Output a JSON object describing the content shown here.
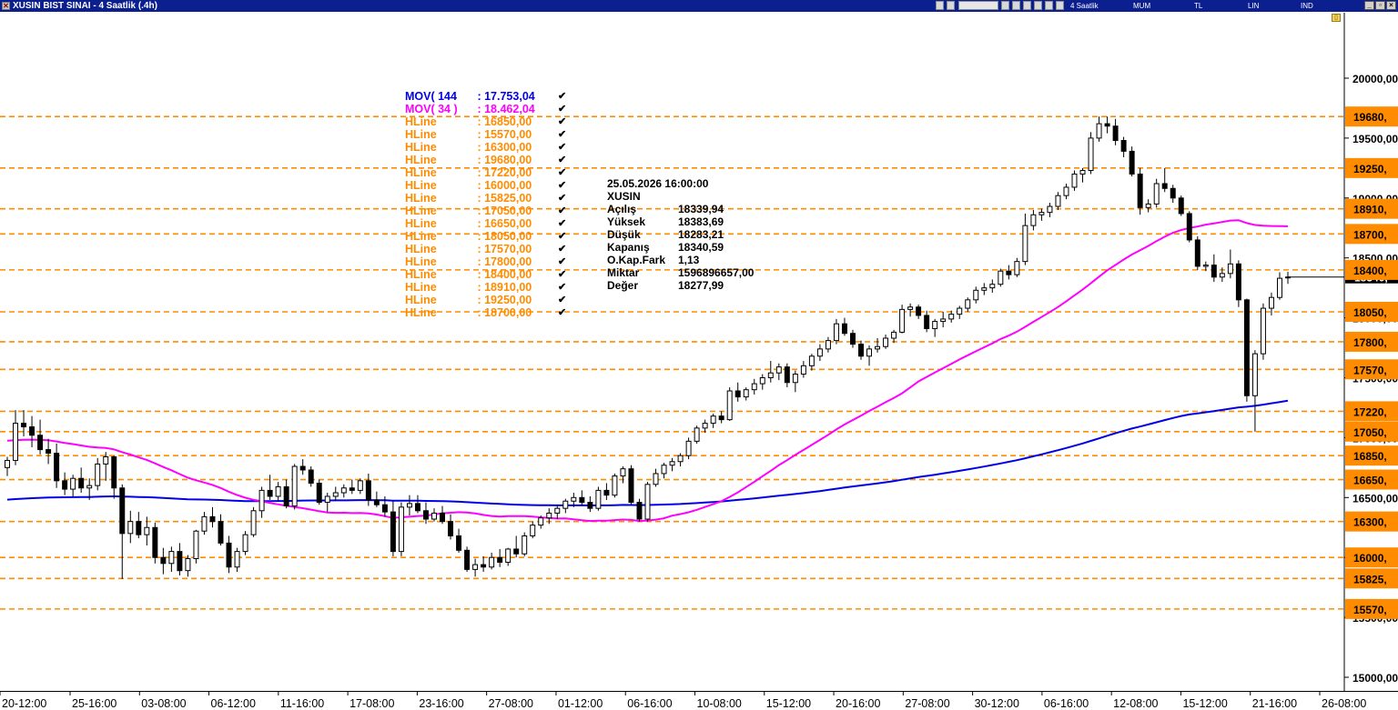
{
  "window": {
    "title": "XUSIN BIST SINAI - 4 Saatlik (.4h)",
    "toolbar": {
      "period": "4 Saatlik",
      "chart_style": "MUM",
      "currency": "TL",
      "scale": "LIN",
      "indicator": "IND"
    },
    "icons": [
      "window-icon",
      "chart-tool-icon",
      "line-tool-icon",
      "template-icon",
      "zoom-icon",
      "pin-icon",
      "arrow-icon",
      "minimize-icon",
      "restore-icon",
      "close-icon",
      "lock-icon"
    ]
  },
  "legend": [
    {
      "name": "MOV( 144",
      "value": " : 17.753,04",
      "color": "#0000e6"
    },
    {
      "name": "MOV( 34 )",
      "value": " : 18.462,04",
      "color": "#ff00ff"
    },
    {
      "name": "HLine",
      "value": " : 16850,00",
      "color": "#ff8c00"
    },
    {
      "name": "HLine",
      "value": " : 15570,00",
      "color": "#ff8c00"
    },
    {
      "name": "HLine",
      "value": " : 16300,00",
      "color": "#ff8c00"
    },
    {
      "name": "HLine",
      "value": " : 19680,00",
      "color": "#ff8c00"
    },
    {
      "name": "HLine",
      "value": " : 17220,00",
      "color": "#ff8c00"
    },
    {
      "name": "HLine",
      "value": " : 16000,00",
      "color": "#ff8c00"
    },
    {
      "name": "HLine",
      "value": " : 15825,00",
      "color": "#ff8c00"
    },
    {
      "name": "HLine",
      "value": " : 17050,00",
      "color": "#ff8c00"
    },
    {
      "name": "HLine",
      "value": " : 16650,00",
      "color": "#ff8c00"
    },
    {
      "name": "HLine",
      "value": " : 18050,00",
      "color": "#ff8c00"
    },
    {
      "name": "HLine",
      "value": " : 17570,00",
      "color": "#ff8c00"
    },
    {
      "name": "HLine",
      "value": " : 17800,00",
      "color": "#ff8c00"
    },
    {
      "name": "HLine",
      "value": " : 18400,00",
      "color": "#ff8c00"
    },
    {
      "name": "HLine",
      "value": " : 18910,00",
      "color": "#ff8c00"
    },
    {
      "name": "HLine",
      "value": " : 19250,00",
      "color": "#ff8c00"
    },
    {
      "name": "HLine",
      "value": " : 18700,00",
      "color": "#ff8c00"
    }
  ],
  "legend_check": "✔",
  "info_box": {
    "datetime": "25.05.2026  16:00:00",
    "symbol": "XUSIN",
    "rows": [
      {
        "label": "Açılış",
        "value": "18339,94"
      },
      {
        "label": "Yüksek",
        "value": "18383,69"
      },
      {
        "label": "Düşük",
        "value": "18283,21"
      },
      {
        "label": "Kapanış",
        "value": "18340,59"
      },
      {
        "label": "O.Kap.Fark",
        "value": "1,13"
      },
      {
        "label": "Miktar",
        "value": "1596896657,00"
      },
      {
        "label": "Değer",
        "value": "18277,99"
      }
    ]
  },
  "chart_data": {
    "type": "candlestick",
    "y_axis": {
      "range": [
        14950,
        20100
      ],
      "ticks": [
        15000,
        15500,
        16000,
        16500,
        17000,
        17500,
        18000,
        18500,
        19000,
        19500,
        20000
      ],
      "tick_labels": [
        "15000,00",
        "15500,00",
        "16000,00",
        "16500,00",
        "17000,00",
        "17500,00",
        "18000,00",
        "18500,00",
        "19000,00",
        "19500,00",
        "20000,00"
      ],
      "position": "right"
    },
    "x_axis": {
      "tick_labels": [
        "20-12:00",
        "25-16:00",
        "03-08:00",
        "06-12:00",
        "11-16:00",
        "17-08:00",
        "23-16:00",
        "27-08:00",
        "01-12:00",
        "06-16:00",
        "10-08:00",
        "15-12:00",
        "20-16:00",
        "27-08:00",
        "30-12:00",
        "06-16:00",
        "12-08:00",
        "15-12:00",
        "21-16:00",
        "26-08:00"
      ]
    },
    "hlines": {
      "values": [
        19680,
        19250,
        18910,
        18700,
        18400,
        18050,
        17800,
        17570,
        17220,
        17050,
        16850,
        16650,
        16300,
        16000,
        15825,
        15570
      ],
      "labels": [
        "19680,",
        "19250,",
        "18910,",
        "18700,",
        "18400,",
        "18050,",
        "17800,",
        "17570,",
        "17220,",
        "17050,",
        "16850,",
        "16650,",
        "16300,",
        "16000,",
        "15825,",
        "15570,"
      ],
      "color": "#ff8c00",
      "style": "dashed"
    },
    "last_price": 18340.59,
    "last_price_label": "18340,",
    "ohlc": [
      [
        16750,
        16840,
        16680,
        16810
      ],
      [
        16810,
        17230,
        16770,
        17120
      ],
      [
        17120,
        17230,
        17010,
        17090
      ],
      [
        17090,
        17180,
        16920,
        17020
      ],
      [
        17020,
        17150,
        16860,
        16900
      ],
      [
        16900,
        16990,
        16780,
        16870
      ],
      [
        16870,
        16950,
        16580,
        16640
      ],
      [
        16640,
        16710,
        16520,
        16570
      ],
      [
        16570,
        16690,
        16510,
        16660
      ],
      [
        16660,
        16750,
        16540,
        16580
      ],
      [
        16580,
        16660,
        16480,
        16600
      ],
      [
        16600,
        16830,
        16560,
        16780
      ],
      [
        16780,
        16880,
        16640,
        16840
      ],
      [
        16840,
        16850,
        16490,
        16580
      ],
      [
        16580,
        16610,
        15820,
        16200
      ],
      [
        16200,
        16390,
        16120,
        16300
      ],
      [
        16300,
        16380,
        16160,
        16190
      ],
      [
        16190,
        16340,
        16100,
        16250
      ],
      [
        16250,
        16290,
        15950,
        16000
      ],
      [
        16000,
        16080,
        15860,
        15950
      ],
      [
        15950,
        16090,
        15880,
        16050
      ],
      [
        16050,
        16120,
        15850,
        15890
      ],
      [
        15890,
        16020,
        15840,
        15990
      ],
      [
        15990,
        16230,
        15950,
        16220
      ],
      [
        16220,
        16380,
        16190,
        16340
      ],
      [
        16340,
        16420,
        16250,
        16300
      ],
      [
        16300,
        16360,
        16100,
        16120
      ],
      [
        16120,
        16180,
        15870,
        15920
      ],
      [
        15920,
        16080,
        15880,
        16050
      ],
      [
        16050,
        16220,
        16020,
        16190
      ],
      [
        16190,
        16420,
        16170,
        16390
      ],
      [
        16390,
        16590,
        16330,
        16560
      ],
      [
        16560,
        16690,
        16480,
        16510
      ],
      [
        16510,
        16630,
        16470,
        16590
      ],
      [
        16590,
        16650,
        16410,
        16430
      ],
      [
        16430,
        16780,
        16400,
        16760
      ],
      [
        16760,
        16820,
        16690,
        16730
      ],
      [
        16730,
        16760,
        16590,
        16620
      ],
      [
        16620,
        16650,
        16440,
        16460
      ],
      [
        16460,
        16540,
        16380,
        16510
      ],
      [
        16510,
        16590,
        16470,
        16540
      ],
      [
        16540,
        16610,
        16500,
        16580
      ],
      [
        16580,
        16650,
        16530,
        16560
      ],
      [
        16560,
        16660,
        16530,
        16640
      ],
      [
        16640,
        16700,
        16430,
        16480
      ],
      [
        16480,
        16550,
        16420,
        16440
      ],
      [
        16440,
        16510,
        16340,
        16380
      ],
      [
        16380,
        16470,
        16010,
        16050
      ],
      [
        16050,
        16460,
        16010,
        16420
      ],
      [
        16420,
        16520,
        16350,
        16450
      ],
      [
        16450,
        16520,
        16370,
        16390
      ],
      [
        16390,
        16460,
        16280,
        16320
      ],
      [
        16320,
        16410,
        16300,
        16370
      ],
      [
        16370,
        16430,
        16280,
        16300
      ],
      [
        16300,
        16360,
        16150,
        16180
      ],
      [
        16180,
        16240,
        16040,
        16060
      ],
      [
        16060,
        16090,
        15880,
        15900
      ],
      [
        15900,
        15990,
        15840,
        15940
      ],
      [
        15940,
        16010,
        15880,
        15920
      ],
      [
        15920,
        16040,
        15900,
        16000
      ],
      [
        16000,
        16070,
        15920,
        15960
      ],
      [
        15960,
        16080,
        15930,
        16070
      ],
      [
        16070,
        16180,
        16000,
        16030
      ],
      [
        16030,
        16210,
        16010,
        16180
      ],
      [
        16180,
        16300,
        16160,
        16270
      ],
      [
        16270,
        16350,
        16240,
        16330
      ],
      [
        16330,
        16410,
        16280,
        16370
      ],
      [
        16370,
        16440,
        16320,
        16410
      ],
      [
        16410,
        16490,
        16370,
        16470
      ],
      [
        16470,
        16540,
        16420,
        16500
      ],
      [
        16500,
        16560,
        16440,
        16460
      ],
      [
        16460,
        16510,
        16380,
        16410
      ],
      [
        16410,
        16590,
        16390,
        16560
      ],
      [
        16560,
        16620,
        16480,
        16520
      ],
      [
        16520,
        16700,
        16500,
        16680
      ],
      [
        16680,
        16760,
        16620,
        16740
      ],
      [
        16740,
        16770,
        16440,
        16460
      ],
      [
        16460,
        16490,
        16300,
        16320
      ],
      [
        16320,
        16630,
        16300,
        16610
      ],
      [
        16610,
        16740,
        16590,
        16700
      ],
      [
        16700,
        16790,
        16660,
        16770
      ],
      [
        16770,
        16830,
        16720,
        16800
      ],
      [
        16800,
        16870,
        16760,
        16850
      ],
      [
        16850,
        17000,
        16820,
        16970
      ],
      [
        16970,
        17100,
        16950,
        17080
      ],
      [
        17080,
        17150,
        17040,
        17120
      ],
      [
        17120,
        17200,
        17080,
        17180
      ],
      [
        17180,
        17220,
        17120,
        17150
      ],
      [
        17150,
        17420,
        17140,
        17390
      ],
      [
        17390,
        17460,
        17300,
        17340
      ],
      [
        17340,
        17420,
        17310,
        17400
      ],
      [
        17400,
        17490,
        17360,
        17450
      ],
      [
        17450,
        17530,
        17400,
        17500
      ],
      [
        17500,
        17640,
        17460,
        17540
      ],
      [
        17540,
        17620,
        17480,
        17590
      ],
      [
        17590,
        17620,
        17420,
        17460
      ],
      [
        17460,
        17560,
        17380,
        17530
      ],
      [
        17530,
        17640,
        17500,
        17600
      ],
      [
        17600,
        17700,
        17560,
        17680
      ],
      [
        17680,
        17780,
        17640,
        17740
      ],
      [
        17740,
        17840,
        17710,
        17810
      ],
      [
        17810,
        17990,
        17780,
        17950
      ],
      [
        17950,
        18000,
        17850,
        17870
      ],
      [
        17870,
        17900,
        17750,
        17780
      ],
      [
        17780,
        17810,
        17650,
        17680
      ],
      [
        17680,
        17770,
        17600,
        17740
      ],
      [
        17740,
        17830,
        17710,
        17760
      ],
      [
        17760,
        17860,
        17740,
        17830
      ],
      [
        17830,
        17900,
        17790,
        17880
      ],
      [
        17880,
        18110,
        17870,
        18070
      ],
      [
        18070,
        18120,
        18010,
        18090
      ],
      [
        18090,
        18110,
        17990,
        18020
      ],
      [
        18020,
        18060,
        17880,
        17910
      ],
      [
        17910,
        17990,
        17840,
        17970
      ],
      [
        17970,
        18050,
        17920,
        17990
      ],
      [
        17990,
        18060,
        17960,
        18030
      ],
      [
        18030,
        18100,
        17990,
        18080
      ],
      [
        18080,
        18170,
        18050,
        18150
      ],
      [
        18150,
        18260,
        18120,
        18230
      ],
      [
        18230,
        18290,
        18190,
        18250
      ],
      [
        18250,
        18320,
        18210,
        18280
      ],
      [
        18280,
        18410,
        18260,
        18390
      ],
      [
        18390,
        18440,
        18320,
        18360
      ],
      [
        18360,
        18500,
        18340,
        18470
      ],
      [
        18470,
        18870,
        18440,
        18770
      ],
      [
        18770,
        18900,
        18730,
        18860
      ],
      [
        18860,
        18910,
        18810,
        18880
      ],
      [
        18880,
        18960,
        18840,
        18930
      ],
      [
        18930,
        19050,
        18900,
        19020
      ],
      [
        19020,
        19120,
        18990,
        19090
      ],
      [
        19090,
        19230,
        19060,
        19200
      ],
      [
        19200,
        19250,
        19130,
        19230
      ],
      [
        19230,
        19550,
        19200,
        19500
      ],
      [
        19500,
        19680,
        19470,
        19620
      ],
      [
        19620,
        19680,
        19540,
        19600
      ],
      [
        19600,
        19660,
        19440,
        19480
      ],
      [
        19480,
        19510,
        19340,
        19390
      ],
      [
        19390,
        19430,
        19180,
        19200
      ],
      [
        19200,
        19250,
        18860,
        18920
      ],
      [
        18920,
        18990,
        18880,
        18950
      ],
      [
        18950,
        19160,
        18920,
        19120
      ],
      [
        19120,
        19250,
        19050,
        19080
      ],
      [
        19080,
        19110,
        18960,
        19000
      ],
      [
        19000,
        19020,
        18850,
        18870
      ],
      [
        18870,
        18890,
        18630,
        18650
      ],
      [
        18650,
        18680,
        18400,
        18430
      ],
      [
        18430,
        18470,
        18390,
        18440
      ],
      [
        18440,
        18530,
        18300,
        18340
      ],
      [
        18340,
        18420,
        18300,
        18370
      ],
      [
        18370,
        18570,
        18330,
        18450
      ],
      [
        18450,
        18480,
        18090,
        18150
      ],
      [
        18150,
        18160,
        17300,
        17350
      ],
      [
        17350,
        17730,
        17050,
        17700
      ],
      [
        17700,
        18120,
        17650,
        18080
      ],
      [
        18080,
        18210,
        18020,
        18170
      ],
      [
        18170,
        18380,
        18150,
        18330
      ],
      [
        18339.94,
        18383.69,
        18283.21,
        18340.59
      ]
    ],
    "series": [
      {
        "name": "MOV( 144",
        "color": "#0000e6"
      },
      {
        "name": "MOV( 34 )",
        "color": "#ff00ff"
      }
    ]
  }
}
